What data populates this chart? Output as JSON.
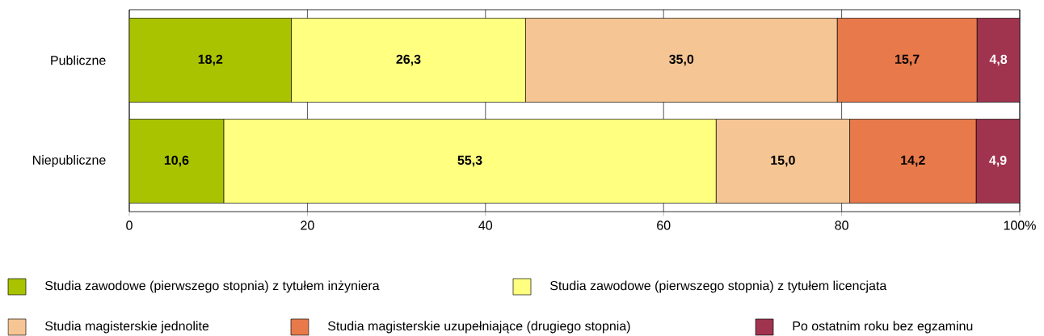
{
  "chart_data": {
    "type": "bar",
    "orientation": "horizontal",
    "stacked": true,
    "categories": [
      "Publiczne",
      "Niepubliczne"
    ],
    "series": [
      {
        "name": "Studia zawodowe (pierwszego stopnia) z tytułem inżyniera",
        "color": "#a9c300",
        "values": [
          18.2,
          10.6
        ],
        "value_labels": [
          "18,2",
          "10,6"
        ]
      },
      {
        "name": "Studia zawodowe (pierwszego stopnia) z tytułem licencjata",
        "color": "#ffff80",
        "values": [
          26.3,
          55.3
        ],
        "value_labels": [
          "26,3",
          "55,3"
        ]
      },
      {
        "name": "Studia magisterskie jednolite",
        "color": "#f6c594",
        "values": [
          35.0,
          15.0
        ],
        "value_labels": [
          "35,0",
          "15,0"
        ]
      },
      {
        "name": "Studia magisterskie uzupełniające (drugiego stopnia)",
        "color": "#e8794a",
        "values": [
          15.7,
          14.2
        ],
        "value_labels": [
          "15,7",
          "14,2"
        ]
      },
      {
        "name": "Po ostatnim roku bez egzaminu",
        "color": "#a0344f",
        "values": [
          4.8,
          4.9
        ],
        "value_labels": [
          "4,8",
          "4,9"
        ]
      }
    ],
    "xlim": [
      0,
      100
    ],
    "xticks": [
      0,
      20,
      40,
      60,
      80,
      {
        "value": 100,
        "label": "100%"
      }
    ],
    "grid": "x",
    "legend": "bottom"
  }
}
